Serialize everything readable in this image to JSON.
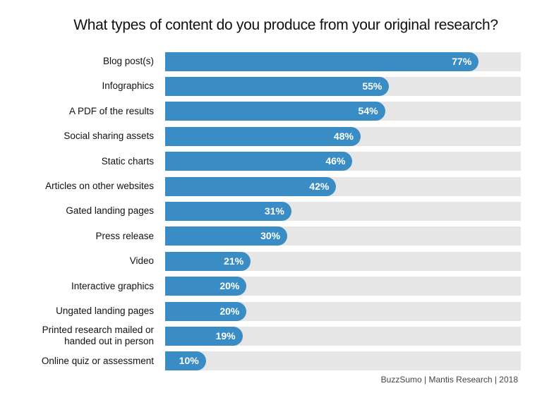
{
  "chart_data": {
    "type": "bar",
    "orientation": "horizontal",
    "title": "What types of content do you produce from your original research?",
    "categories": [
      "Blog post(s)",
      "Infographics",
      "A PDF of the results",
      "Social sharing assets",
      "Static charts",
      "Articles on other websites",
      "Gated landing pages",
      "Press release",
      "Video",
      "Interactive graphics",
      "Ungated landing pages",
      "Printed research mailed or\nhanded out in person",
      "Online quiz or assessment"
    ],
    "values": [
      77,
      55,
      54,
      48,
      46,
      42,
      31,
      30,
      21,
      20,
      20,
      19,
      10
    ],
    "value_labels": [
      "77%",
      "55%",
      "54%",
      "48%",
      "46%",
      "42%",
      "31%",
      "30%",
      "21%",
      "20%",
      "20%",
      "19%",
      "10%"
    ],
    "color": "#3a8cc4",
    "source": "BuzzSumo | Mantis Research | 2018"
  }
}
